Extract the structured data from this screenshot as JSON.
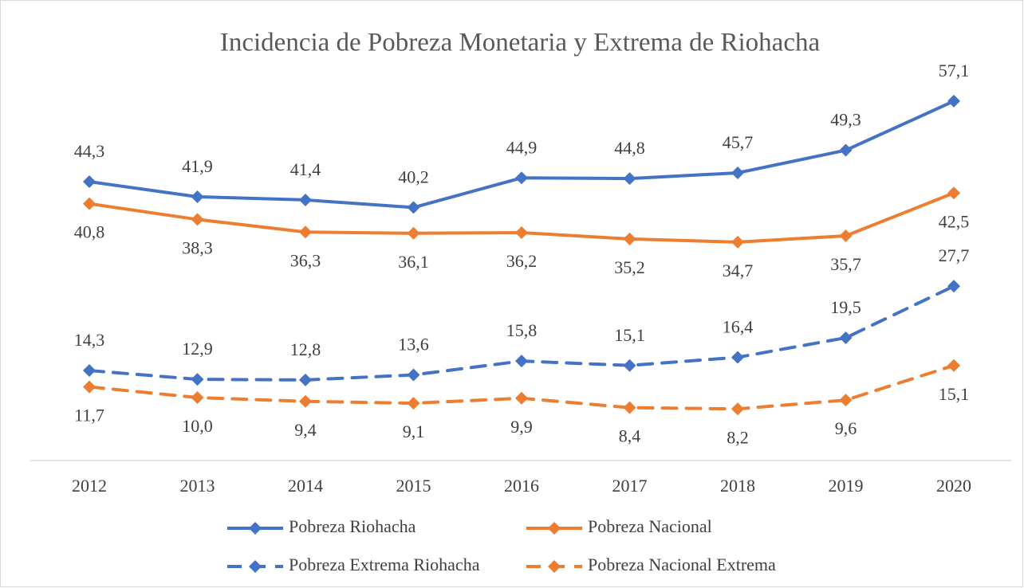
{
  "chart_data": {
    "type": "line",
    "title": "Incidencia de Pobreza Monetaria y Extrema de Riohacha",
    "categories": [
      "2012",
      "2013",
      "2014",
      "2015",
      "2016",
      "2017",
      "2018",
      "2019",
      "2020"
    ],
    "ylim": [
      0,
      60
    ],
    "legend": "bottom",
    "series": [
      {
        "name": "Pobreza Riohacha",
        "color": "#4472c4",
        "dashed": false,
        "label_position": "above",
        "values": [
          44.3,
          41.9,
          41.4,
          40.2,
          44.9,
          44.8,
          45.7,
          49.3,
          57.1
        ],
        "value_labels": [
          "44,3",
          "41,9",
          "41,4",
          "40,2",
          "44,9",
          "44,8",
          "45,7",
          "49,3",
          "57,1"
        ]
      },
      {
        "name": "Pobreza Nacional",
        "color": "#ed7d31",
        "dashed": false,
        "label_position": "below",
        "values": [
          40.8,
          38.3,
          36.3,
          36.1,
          36.2,
          35.2,
          34.7,
          35.7,
          42.5
        ],
        "value_labels": [
          "40,8",
          "38,3",
          "36,3",
          "36,1",
          "36,2",
          "35,2",
          "34,7",
          "35,7",
          "42,5"
        ]
      },
      {
        "name": "Pobreza Extrema Riohacha",
        "color": "#4472c4",
        "dashed": true,
        "label_position": "above",
        "values": [
          14.3,
          12.9,
          12.8,
          13.6,
          15.8,
          15.1,
          16.4,
          19.5,
          27.7
        ],
        "value_labels": [
          "14,3",
          "12,9",
          "12,8",
          "13,6",
          "15,8",
          "15,1",
          "16,4",
          "19,5",
          "27,7"
        ]
      },
      {
        "name": "Pobreza Nacional Extrema",
        "color": "#ed7d31",
        "dashed": true,
        "label_position": "below",
        "values": [
          11.7,
          10.0,
          9.4,
          9.1,
          9.9,
          8.4,
          8.2,
          9.6,
          15.1
        ],
        "value_labels": [
          "11,7",
          "10,0",
          "9,4",
          "9,1",
          "9,9",
          "8,4",
          "8,2",
          "9,6",
          "15,1"
        ]
      }
    ]
  }
}
